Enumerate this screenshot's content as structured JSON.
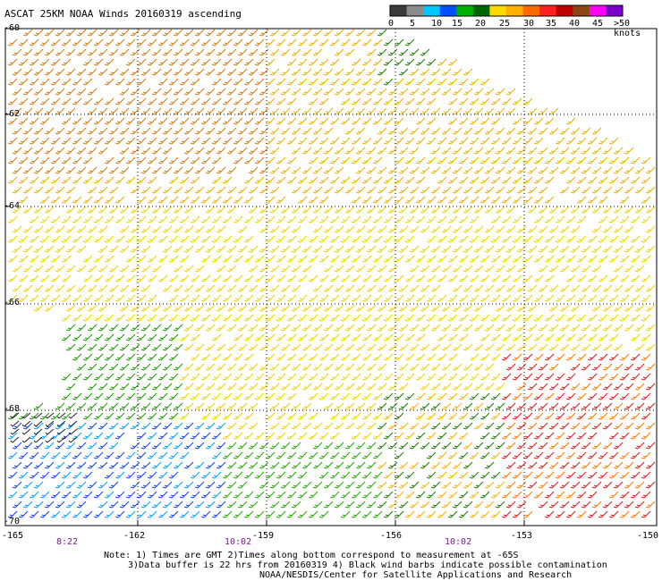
{
  "title": "ASCAT 25KM NOAA Winds 20160319 ascending",
  "color_scale": {
    "labels": [
      "0",
      "5",
      "10",
      "15",
      "20",
      "25",
      "30",
      "35",
      "40",
      "45",
      ">50 knots"
    ],
    "colors": [
      "#3a3a3a",
      "#8c8c8c",
      "#00c8ff",
      "#0050ff",
      "#00b000",
      "#006400",
      "#ffd800",
      "#ffb000",
      "#ff6a00",
      "#ff2020",
      "#c00000",
      "#8b4513",
      "#ff00ff",
      "#7a00c8"
    ]
  },
  "latitude_labels": [
    "-60",
    "-62",
    "-64",
    "-66",
    "-68",
    "-70"
  ],
  "longitude_labels": [
    "-165",
    "-162",
    "-159",
    "-156",
    "-153",
    "-150"
  ],
  "time_labels": [
    "8:22",
    "10:02",
    "10:02"
  ],
  "notes": {
    "line1": "Note: 1) Times are GMT 2)Times along bottom correspond to measurement at -65S",
    "line2": "3)Data buffer is 22 hrs from 20160319 4) Black wind barbs indicate possible contamination",
    "line3": "NOAA/NESDIS/Center for Satellite Applications and Research"
  }
}
